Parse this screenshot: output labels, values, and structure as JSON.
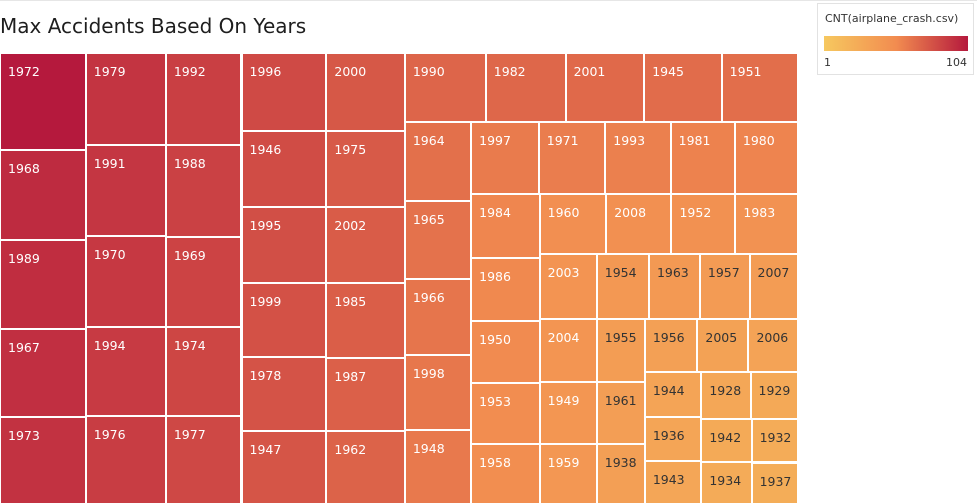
{
  "chart_data": {
    "type": "treemap",
    "title": "Max Accidents Based On Years",
    "measure": "CNT(airplane_crash.csv)",
    "color_range": [
      1,
      104
    ],
    "colors": {
      "low": "#f6c85f",
      "mid": "#f28c50",
      "high": "#b5193d"
    },
    "items": [
      {
        "year": "1972",
        "value": 104
      },
      {
        "year": "1968",
        "value": 96
      },
      {
        "year": "1989",
        "value": 95
      },
      {
        "year": "1967",
        "value": 94
      },
      {
        "year": "1973",
        "value": 93
      },
      {
        "year": "1979",
        "value": 92
      },
      {
        "year": "1991",
        "value": 91
      },
      {
        "year": "1970",
        "value": 90
      },
      {
        "year": "1994",
        "value": 89
      },
      {
        "year": "1976",
        "value": 88
      },
      {
        "year": "1992",
        "value": 87
      },
      {
        "year": "1988",
        "value": 86
      },
      {
        "year": "1969",
        "value": 85
      },
      {
        "year": "1974",
        "value": 84
      },
      {
        "year": "1977",
        "value": 83
      },
      {
        "year": "1996",
        "value": 82
      },
      {
        "year": "1946",
        "value": 81
      },
      {
        "year": "1995",
        "value": 80
      },
      {
        "year": "1999",
        "value": 79
      },
      {
        "year": "1978",
        "value": 78
      },
      {
        "year": "1947",
        "value": 77
      },
      {
        "year": "2000",
        "value": 76
      },
      {
        "year": "1975",
        "value": 75
      },
      {
        "year": "2002",
        "value": 74
      },
      {
        "year": "1985",
        "value": 73
      },
      {
        "year": "1987",
        "value": 72
      },
      {
        "year": "1962",
        "value": 71
      },
      {
        "year": "1990",
        "value": 70
      },
      {
        "year": "1982",
        "value": 69
      },
      {
        "year": "2001",
        "value": 68
      },
      {
        "year": "1945",
        "value": 67
      },
      {
        "year": "1951",
        "value": 66
      },
      {
        "year": "1964",
        "value": 65
      },
      {
        "year": "1965",
        "value": 64
      },
      {
        "year": "1966",
        "value": 63
      },
      {
        "year": "1998",
        "value": 62
      },
      {
        "year": "1948",
        "value": 61
      },
      {
        "year": "1997",
        "value": 60
      },
      {
        "year": "1971",
        "value": 59
      },
      {
        "year": "1993",
        "value": 58
      },
      {
        "year": "1981",
        "value": 57
      },
      {
        "year": "1980",
        "value": 56
      },
      {
        "year": "1984",
        "value": 55
      },
      {
        "year": "1986",
        "value": 54
      },
      {
        "year": "1950",
        "value": 53
      },
      {
        "year": "1953",
        "value": 52
      },
      {
        "year": "1958",
        "value": 51
      },
      {
        "year": "1960",
        "value": 50
      },
      {
        "year": "2008",
        "value": 49
      },
      {
        "year": "1952",
        "value": 48
      },
      {
        "year": "1983",
        "value": 47
      },
      {
        "year": "2003",
        "value": 46
      },
      {
        "year": "2004",
        "value": 45
      },
      {
        "year": "1949",
        "value": 44
      },
      {
        "year": "1959",
        "value": 43
      },
      {
        "year": "1954",
        "value": 42
      },
      {
        "year": "1963",
        "value": 41
      },
      {
        "year": "1957",
        "value": 40
      },
      {
        "year": "2007",
        "value": 39
      },
      {
        "year": "1955",
        "value": 38
      },
      {
        "year": "1961",
        "value": 37
      },
      {
        "year": "1938",
        "value": 36
      },
      {
        "year": "1956",
        "value": 35
      },
      {
        "year": "2005",
        "value": 34
      },
      {
        "year": "2006",
        "value": 33
      },
      {
        "year": "1944",
        "value": 32
      },
      {
        "year": "1936",
        "value": 31
      },
      {
        "year": "1943",
        "value": 30
      },
      {
        "year": "1928",
        "value": 29
      },
      {
        "year": "1929",
        "value": 28
      },
      {
        "year": "1942",
        "value": 27
      },
      {
        "year": "1934",
        "value": 26
      },
      {
        "year": "1932",
        "value": 25
      },
      {
        "year": "1937",
        "value": 24
      }
    ]
  },
  "legend": {
    "title": "CNT(airplane_crash.csv)",
    "min_label": "1",
    "max_label": "104"
  }
}
